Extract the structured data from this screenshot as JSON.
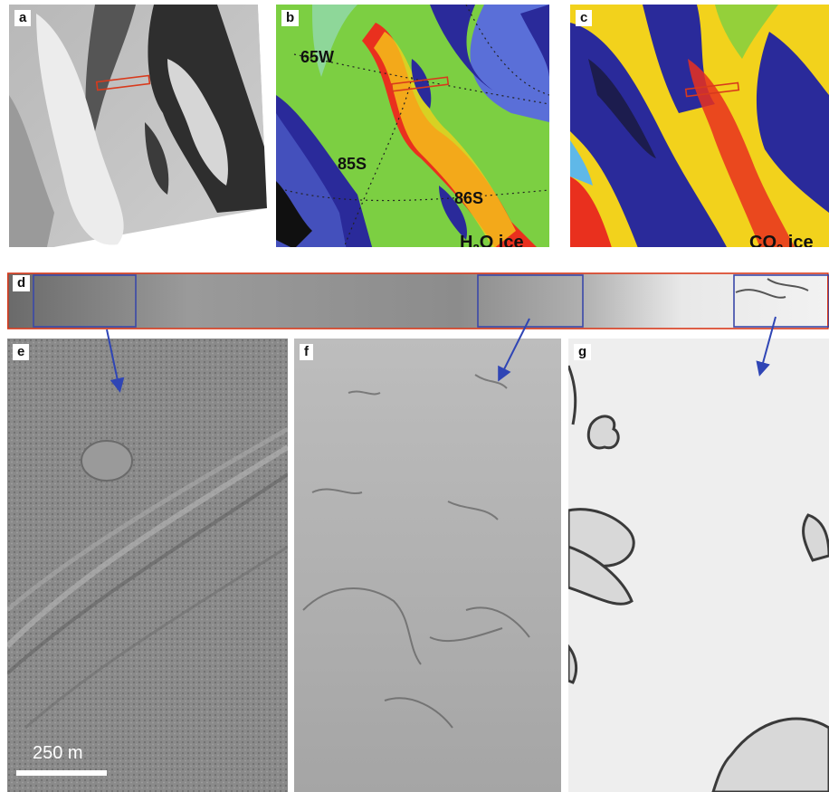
{
  "panels": {
    "a": {
      "label": "a"
    },
    "b": {
      "label": "b",
      "lon_label": "65W",
      "lat_label_1": "85S",
      "lat_label_2": "86S",
      "ice_prefix": "H",
      "ice_sub": "2",
      "ice_suffix": "O ice"
    },
    "c": {
      "label": "c",
      "ice_prefix": "CO",
      "ice_sub": "2",
      "ice_suffix": " ice"
    },
    "d": {
      "label": "d"
    },
    "e": {
      "label": "e"
    },
    "f": {
      "label": "f"
    },
    "g": {
      "label": "g"
    }
  },
  "scale": {
    "text": "250 m"
  },
  "colors": {
    "outline_red": "#d83a1c",
    "box_blue": "#3a48a8",
    "arrow_blue": "#2f45b5"
  }
}
